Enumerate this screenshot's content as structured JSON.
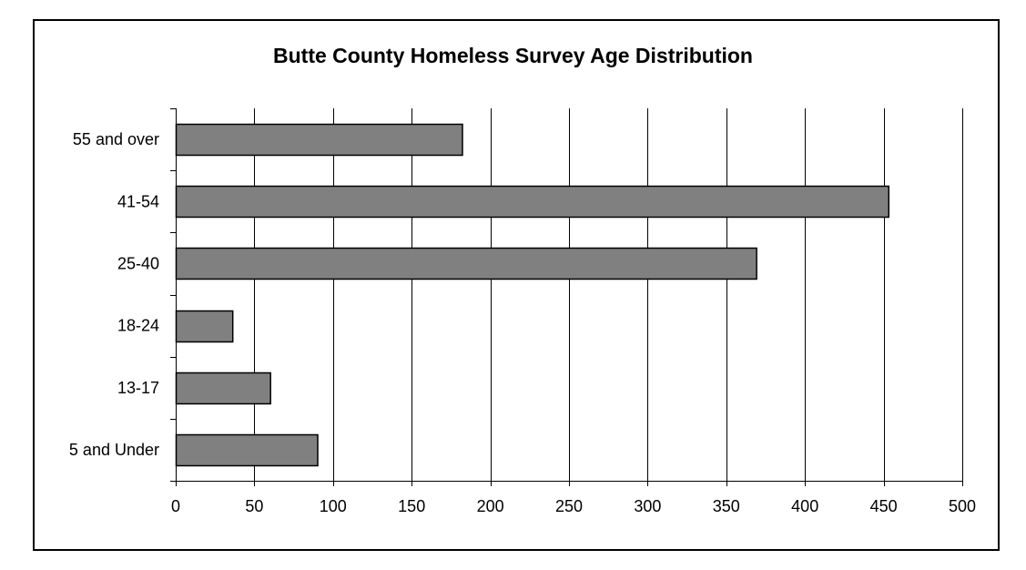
{
  "chart_data": {
    "type": "bar",
    "orientation": "horizontal",
    "title": "Butte County Homeless Survey Age Distribution",
    "xlabel": "",
    "ylabel": "",
    "categories": [
      "55 and over",
      "41-54",
      "25-40",
      "18-24",
      "13-17",
      "5 and Under"
    ],
    "values": [
      182,
      453,
      369,
      36,
      60,
      90
    ],
    "xlim": [
      0,
      500
    ],
    "xticks": [
      0,
      50,
      100,
      150,
      200,
      250,
      300,
      350,
      400,
      450,
      500
    ],
    "grid": "vertical",
    "legend": "none",
    "colors": {
      "bar_fill": "#808080",
      "bar_stroke": "#000000",
      "gridline": "#000000"
    }
  }
}
